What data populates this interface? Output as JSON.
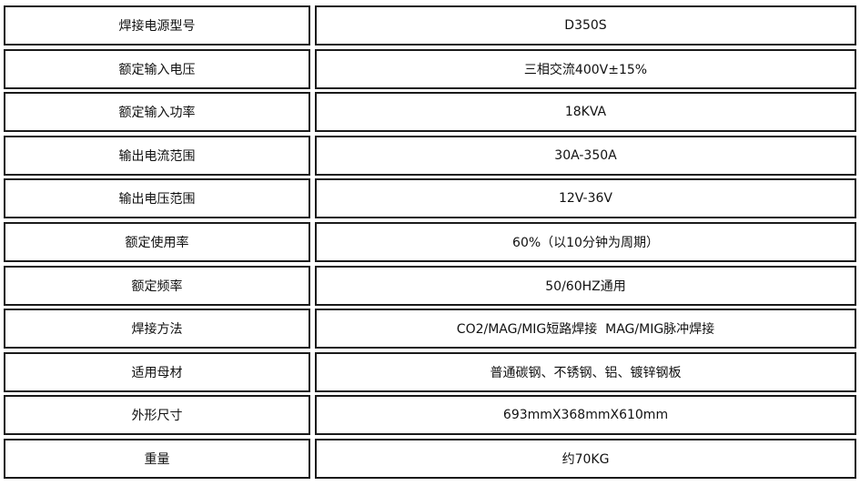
{
  "spec_table": {
    "rows": [
      {
        "label": "焊接电源型号",
        "value": "D350S"
      },
      {
        "label": "额定输入电压",
        "value": "三相交流400V±15%"
      },
      {
        "label": "额定输入功率",
        "value": "18KVA"
      },
      {
        "label": "输出电流范围",
        "value": "30A-350A"
      },
      {
        "label": "输出电压范围",
        "value": "12V-36V"
      },
      {
        "label": "额定使用率",
        "value": "60%（以10分钟为周期）"
      },
      {
        "label": "额定频率",
        "value": "50/60HZ通用"
      },
      {
        "label": "焊接方法",
        "value": "CO2/MAG/MIG短路焊接  MAG/MIG脉冲焊接"
      },
      {
        "label": "适用母材",
        "value": "普通碳钢、不锈钢、铝、镀锌钢板"
      },
      {
        "label": "外形尺寸",
        "value": "693mmX368mmX610mm"
      },
      {
        "label": "重量",
        "value": "约70KG"
      }
    ]
  }
}
